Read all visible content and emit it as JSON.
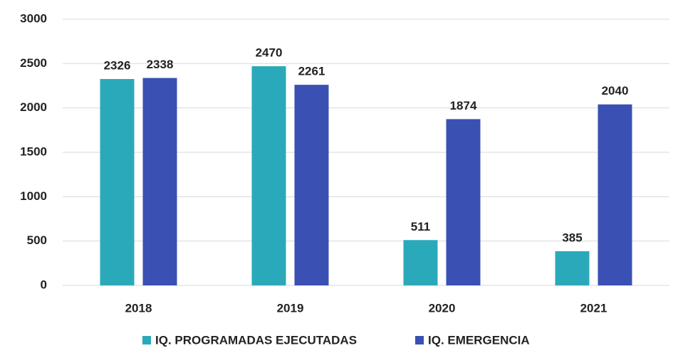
{
  "chart_data": {
    "type": "bar",
    "categories": [
      "2018",
      "2019",
      "2020",
      "2021"
    ],
    "series": [
      {
        "name": "IQ. PROGRAMADAS EJECUTADAS",
        "color": "#2aa9ba",
        "values": [
          2326,
          2470,
          511,
          385
        ]
      },
      {
        "name": "IQ. EMERGENCIA",
        "color": "#3a50b3",
        "values": [
          2338,
          2261,
          1874,
          2040
        ]
      }
    ],
    "ylim": [
      0,
      3000
    ],
    "yticks": [
      0,
      500,
      1000,
      1500,
      2000,
      2500,
      3000
    ],
    "grid": true,
    "legend": "bottom"
  }
}
